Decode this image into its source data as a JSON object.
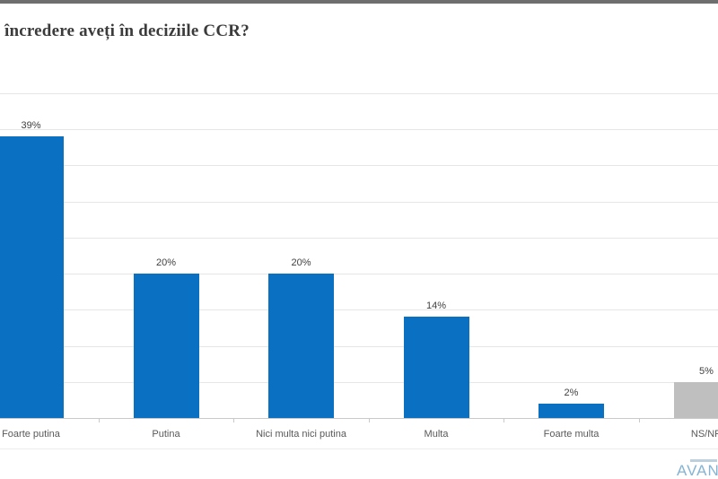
{
  "page": {
    "top_strip_color": "#6e6e6e",
    "background": "#ffffff"
  },
  "chart_data": {
    "type": "bar",
    "title": "încredere aveți în deciziile CCR?",
    "categories": [
      "Foarte putina",
      "Putina",
      "Nici multa nici putina",
      "Multa",
      "Foarte multa",
      "NS/NR"
    ],
    "values": [
      39,
      20,
      20,
      14,
      2,
      5
    ],
    "data_labels": [
      "39%",
      "20%",
      "20%",
      "14%",
      "2%",
      "5%"
    ],
    "bar_colors": [
      "#0a70c2",
      "#0a70c2",
      "#0a70c2",
      "#0a70c2",
      "#0a70c2",
      "#bfbfbf"
    ],
    "xlabel": "",
    "ylabel": "",
    "ylim": [
      0,
      45
    ],
    "gridline_step": 5,
    "grid": true,
    "legend": "none",
    "accent_color": "#0a70c2",
    "neutral_color": "#bfbfbf"
  },
  "footer": {
    "logo_text": "AVAN"
  }
}
